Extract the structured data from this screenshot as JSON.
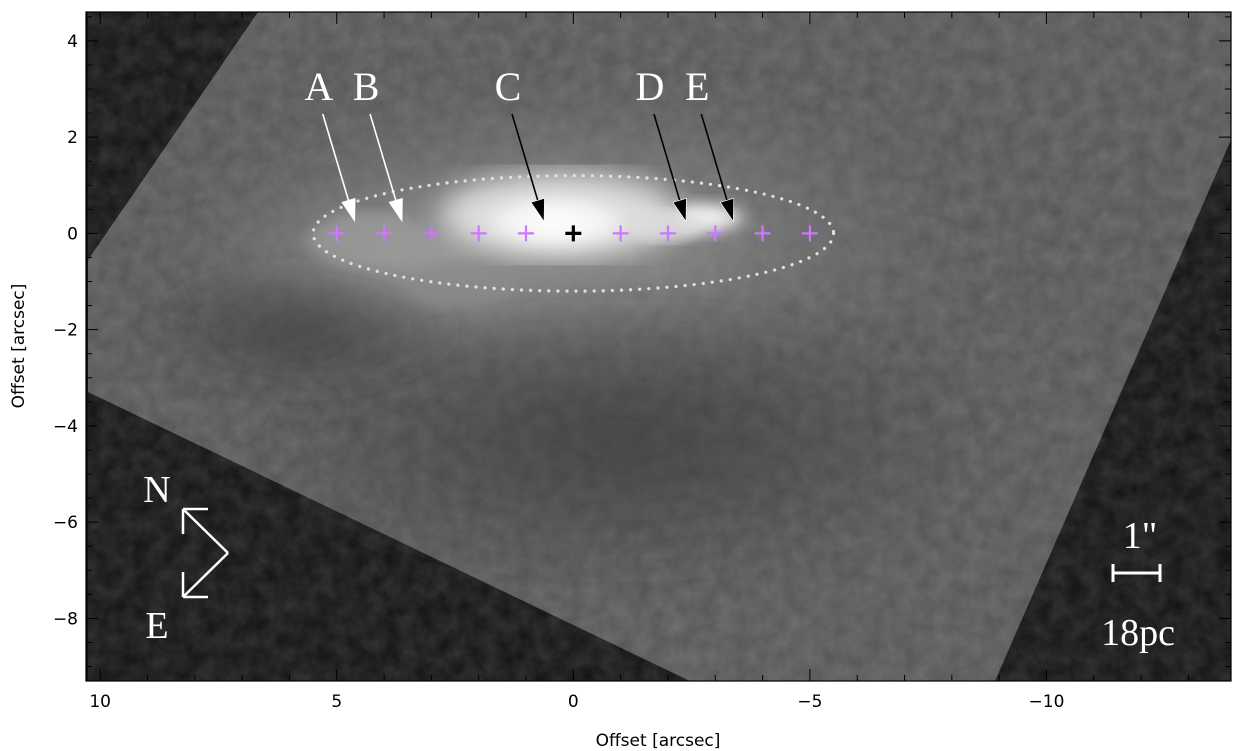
{
  "figure": {
    "x_axis_label": "Offset [arcsec]",
    "y_axis_label": "Offset [arcsec]",
    "x_ticks": [
      "10",
      "5",
      "0",
      "−5",
      "−10"
    ],
    "y_ticks": [
      "4",
      "2",
      "0",
      "−2",
      "−4",
      "−6",
      "−8"
    ],
    "x_range": [
      10.3,
      -13.9
    ],
    "y_range": [
      -9.3,
      4.6
    ]
  },
  "annotations": {
    "labels": [
      {
        "text": "A",
        "x": 5.0,
        "color": "white"
      },
      {
        "text": "B",
        "x": 4.0,
        "color": "white"
      },
      {
        "text": "C",
        "x": 1.0,
        "color": "black"
      },
      {
        "text": "D",
        "x": -2.0,
        "color": "black"
      },
      {
        "text": "E",
        "x": -3.0,
        "color": "black"
      }
    ],
    "aperture_offsets_x": [
      5,
      4,
      3,
      2,
      1,
      -1,
      -2,
      -3,
      -4,
      -5
    ],
    "nucleus_offset": [
      0,
      0
    ],
    "ellipse": {
      "center": [
        0,
        0
      ],
      "semi_major": 5.5,
      "semi_minor": 1.2
    },
    "compass": {
      "north": "N",
      "east": "E"
    },
    "scalebar": {
      "angular": "1\"",
      "physical": "18pc"
    }
  },
  "colors": {
    "aperture_marker": "#cc77ff",
    "nucleus_marker": "#000000",
    "background": "#111111",
    "annotation_white": "#ffffff"
  }
}
